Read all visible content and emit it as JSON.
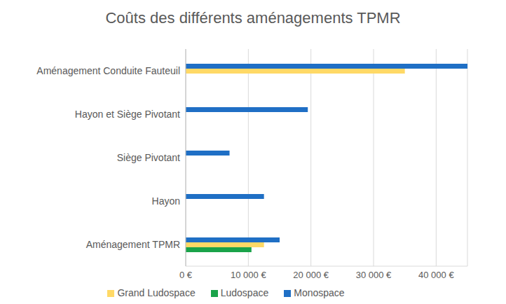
{
  "chart_data": {
    "type": "bar",
    "title": "Coûts des différents aménagements TPMR",
    "orientation": "horizontal",
    "categories": [
      "Aménagement Conduite Fauteuil",
      "Hayon et Siège Pivotant",
      "Siège Pivotant",
      "Hayon",
      "Aménagement TPMR"
    ],
    "series": [
      {
        "name": "Monospace",
        "color": "#1f6fc5",
        "values": [
          45000,
          19500,
          7000,
          12500,
          15000
        ]
      },
      {
        "name": "Grand Ludospace",
        "color": "#ffd966",
        "values": [
          35000,
          null,
          null,
          null,
          12500
        ]
      },
      {
        "name": "Ludospace",
        "color": "#1aa34a",
        "values": [
          null,
          null,
          null,
          null,
          10500
        ]
      }
    ],
    "xlim": [
      0,
      45000
    ],
    "xticks": [
      {
        "value": 0,
        "label": "0 €"
      },
      {
        "value": 10000,
        "label": "10 000 €"
      },
      {
        "value": 20000,
        "label": "20 000 €"
      },
      {
        "value": 30000,
        "label": "30 000 €"
      },
      {
        "value": 40000,
        "label": "40 000 €"
      }
    ],
    "grid": true,
    "legend": "bottom"
  }
}
